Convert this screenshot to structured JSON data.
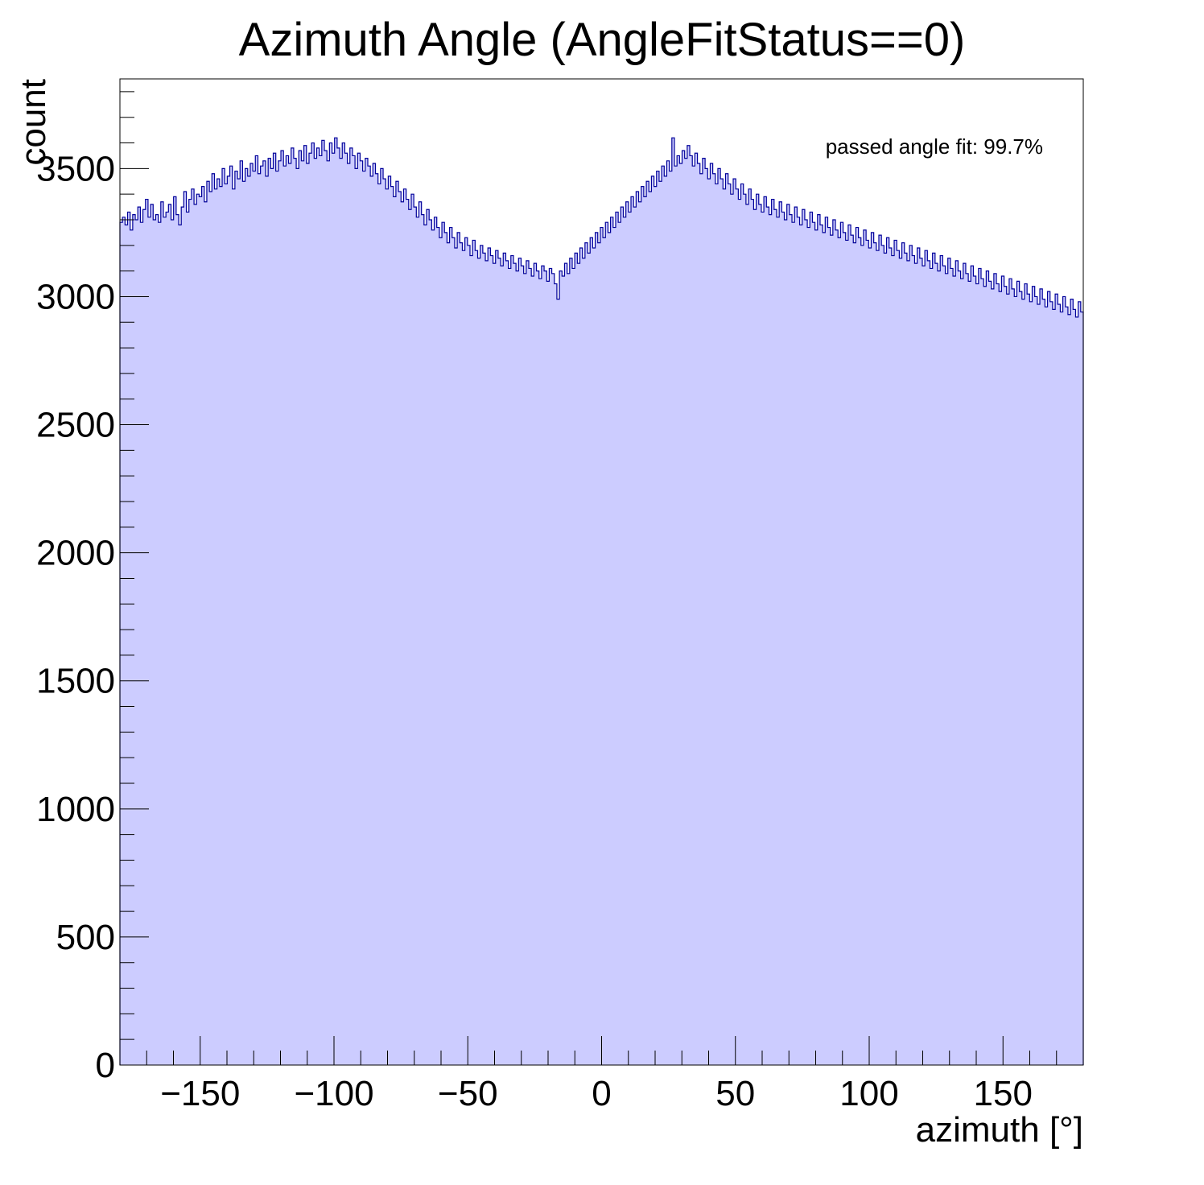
{
  "chart_data": {
    "type": "bar",
    "title": "Azimuth Angle (AngleFitStatus==0)",
    "xlabel": "azimuth [°]",
    "ylabel": "count",
    "xlim": [
      -180,
      180
    ],
    "ylim": [
      0,
      3850
    ],
    "xticks": [
      -150,
      -100,
      -50,
      0,
      50,
      100,
      150
    ],
    "xtick_labels": [
      "−150",
      "−100",
      "−50",
      "0",
      "50",
      "100",
      "150"
    ],
    "yticks": [
      0,
      500,
      1000,
      1500,
      2000,
      2500,
      3000,
      3500
    ],
    "ytick_labels": [
      "0",
      "500",
      "1000",
      "1500",
      "2000",
      "2500",
      "3000",
      "3500"
    ],
    "grid": false,
    "legend": "none",
    "fill_color": "#ccccff",
    "line_color": "#000099",
    "annotation": "passed angle fit: 99.7%",
    "bin_width": 1,
    "values": [
      3290,
      3310,
      3280,
      3330,
      3260,
      3320,
      3300,
      3350,
      3290,
      3340,
      3380,
      3310,
      3360,
      3300,
      3320,
      3290,
      3370,
      3310,
      3330,
      3360,
      3300,
      3390,
      3320,
      3280,
      3350,
      3410,
      3330,
      3380,
      3420,
      3360,
      3400,
      3390,
      3430,
      3370,
      3450,
      3410,
      3480,
      3420,
      3460,
      3430,
      3500,
      3440,
      3470,
      3510,
      3420,
      3490,
      3460,
      3530,
      3450,
      3500,
      3470,
      3520,
      3490,
      3550,
      3480,
      3510,
      3530,
      3470,
      3540,
      3500,
      3560,
      3490,
      3530,
      3570,
      3510,
      3550,
      3520,
      3580,
      3540,
      3500,
      3570,
      3530,
      3590,
      3520,
      3560,
      3600,
      3540,
      3580,
      3550,
      3610,
      3570,
      3530,
      3600,
      3560,
      3620,
      3580,
      3540,
      3600,
      3560,
      3520,
      3580,
      3550,
      3500,
      3560,
      3530,
      3490,
      3540,
      3510,
      3470,
      3520,
      3480,
      3440,
      3500,
      3460,
      3420,
      3470,
      3430,
      3390,
      3450,
      3410,
      3370,
      3420,
      3380,
      3340,
      3400,
      3350,
      3310,
      3370,
      3320,
      3280,
      3340,
      3300,
      3260,
      3310,
      3270,
      3230,
      3290,
      3250,
      3210,
      3270,
      3230,
      3190,
      3250,
      3210,
      3180,
      3230,
      3200,
      3160,
      3220,
      3180,
      3150,
      3200,
      3170,
      3140,
      3190,
      3160,
      3130,
      3180,
      3150,
      3120,
      3170,
      3140,
      3110,
      3160,
      3130,
      3100,
      3150,
      3120,
      3090,
      3140,
      3110,
      3080,
      3130,
      3100,
      3070,
      3120,
      3100,
      3060,
      3110,
      3090,
      3050,
      2990,
      3100,
      3080,
      3130,
      3090,
      3150,
      3110,
      3170,
      3130,
      3190,
      3150,
      3210,
      3170,
      3230,
      3190,
      3250,
      3210,
      3270,
      3230,
      3290,
      3250,
      3310,
      3270,
      3330,
      3290,
      3350,
      3310,
      3370,
      3330,
      3390,
      3350,
      3410,
      3370,
      3430,
      3390,
      3450,
      3410,
      3470,
      3430,
      3490,
      3450,
      3510,
      3470,
      3530,
      3490,
      3620,
      3510,
      3550,
      3520,
      3570,
      3540,
      3590,
      3550,
      3510,
      3560,
      3520,
      3480,
      3540,
      3500,
      3460,
      3520,
      3480,
      3440,
      3500,
      3460,
      3420,
      3480,
      3440,
      3400,
      3460,
      3420,
      3380,
      3440,
      3400,
      3360,
      3420,
      3380,
      3340,
      3400,
      3360,
      3330,
      3390,
      3350,
      3320,
      3380,
      3340,
      3310,
      3370,
      3330,
      3300,
      3360,
      3320,
      3290,
      3350,
      3310,
      3280,
      3340,
      3300,
      3270,
      3330,
      3290,
      3260,
      3320,
      3280,
      3250,
      3310,
      3270,
      3240,
      3300,
      3260,
      3230,
      3290,
      3250,
      3220,
      3280,
      3240,
      3210,
      3270,
      3230,
      3200,
      3260,
      3220,
      3190,
      3250,
      3210,
      3180,
      3240,
      3200,
      3170,
      3230,
      3190,
      3160,
      3220,
      3180,
      3150,
      3210,
      3170,
      3140,
      3200,
      3160,
      3130,
      3190,
      3150,
      3120,
      3180,
      3140,
      3110,
      3170,
      3130,
      3100,
      3160,
      3120,
      3090,
      3150,
      3110,
      3080,
      3140,
      3100,
      3070,
      3130,
      3090,
      3060,
      3120,
      3080,
      3050,
      3110,
      3070,
      3040,
      3100,
      3060,
      3030,
      3090,
      3050,
      3020,
      3080,
      3040,
      3010,
      3070,
      3030,
      3000,
      3060,
      3020,
      2990,
      3050,
      3010,
      2980,
      3040,
      3000,
      2970,
      3030,
      2990,
      2960,
      3020,
      2980,
      2950,
      3010,
      2970,
      2940,
      3000,
      2960,
      2930,
      2990,
      2950,
      2920,
      2980,
      2940
    ]
  }
}
